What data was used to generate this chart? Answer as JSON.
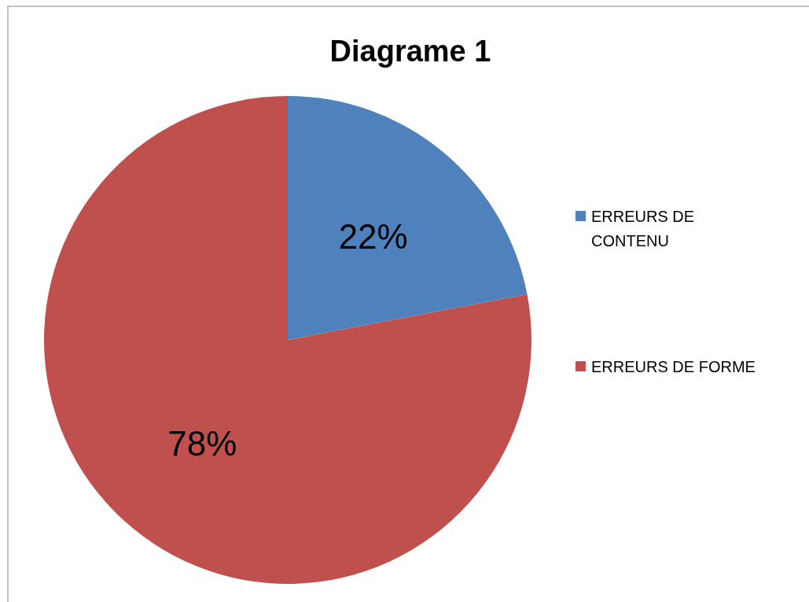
{
  "chart_data": {
    "type": "pie",
    "title": "Diagrame 1",
    "categories": [
      "ERREURS DE CONTENU",
      "ERREURS DE FORME"
    ],
    "values": [
      22,
      78
    ],
    "colors": [
      "#4f81bd",
      "#c0504d"
    ],
    "value_labels": [
      "22%",
      "78%"
    ],
    "legend": "right"
  }
}
